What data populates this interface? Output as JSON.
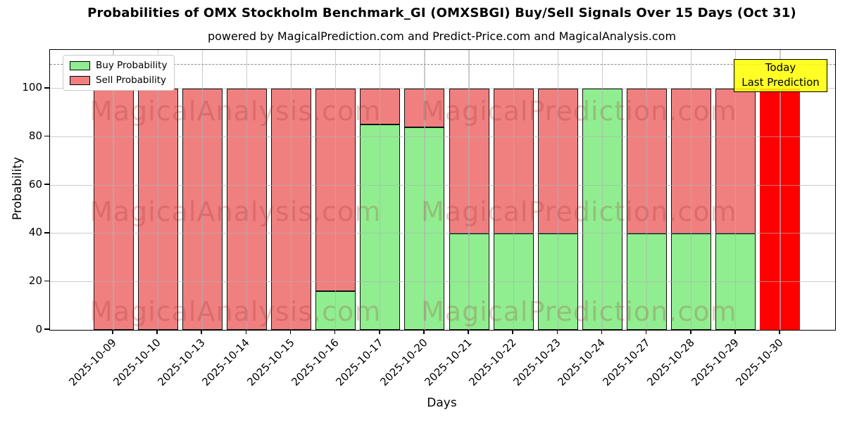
{
  "title": "Probabilities of OMX Stockholm Benchmark_GI (OMXSBGI) Buy/Sell Signals Over 15 Days (Oct 31)",
  "subtitle": "powered by MagicalPrediction.com and Predict-Price.com and MagicalAnalysis.com",
  "xlabel": "Days",
  "ylabel": "Probability",
  "legend": [
    {
      "label": "Buy Probability",
      "color": "#90ee90"
    },
    {
      "label": "Sell Probability",
      "color": "#f08080"
    }
  ],
  "annotation": {
    "line1": "Today",
    "line2": "Last Prediction",
    "bg_color": "#ffff00"
  },
  "watermarks": {
    "left": "MagicalAnalysis.com",
    "right": "MagicalPrediction.com"
  },
  "colors": {
    "buy": "#90ee90",
    "sell": "#f08080",
    "today_bar": "#ff0000",
    "grid": "#b0b0b0",
    "dashed_line": "#8a8a8a",
    "annotation_bg": "#ffff00"
  },
  "chart_data": {
    "type": "bar",
    "stacked": true,
    "title": "Probabilities of OMX Stockholm Benchmark_GI (OMXSBGI) Buy/Sell Signals Over 15 Days (Oct 31)",
    "xlabel": "Days",
    "ylabel": "Probability",
    "categories": [
      "2025-10-09",
      "2025-10-10",
      "2025-10-13",
      "2025-10-14",
      "2025-10-15",
      "2025-10-16",
      "2025-10-17",
      "2025-10-20",
      "2025-10-21",
      "2025-10-22",
      "2025-10-23",
      "2025-10-24",
      "2025-10-27",
      "2025-10-28",
      "2025-10-29",
      "2025-10-30"
    ],
    "series": [
      {
        "name": "Buy Probability",
        "color": "#90ee90",
        "values": [
          0,
          0,
          0,
          0,
          0,
          16,
          85,
          84,
          40,
          40,
          40,
          100,
          40,
          40,
          40,
          0
        ]
      },
      {
        "name": "Sell Probability",
        "color": "#f08080",
        "values": [
          100,
          100,
          100,
          100,
          100,
          84,
          15,
          16,
          60,
          60,
          60,
          0,
          60,
          60,
          60,
          0
        ]
      },
      {
        "name": "Today Last Prediction",
        "color": "#ff0000",
        "values": [
          0,
          0,
          0,
          0,
          0,
          0,
          0,
          0,
          0,
          0,
          0,
          0,
          0,
          0,
          0,
          100
        ]
      }
    ],
    "yticks": [
      0,
      20,
      40,
      60,
      80,
      100
    ],
    "ylim": [
      0,
      116
    ],
    "dashed_line_y": 110,
    "grid": true,
    "legend_position": "upper left",
    "annotation_text": "Today Last Prediction",
    "annotation_target": "2025-10-30"
  }
}
